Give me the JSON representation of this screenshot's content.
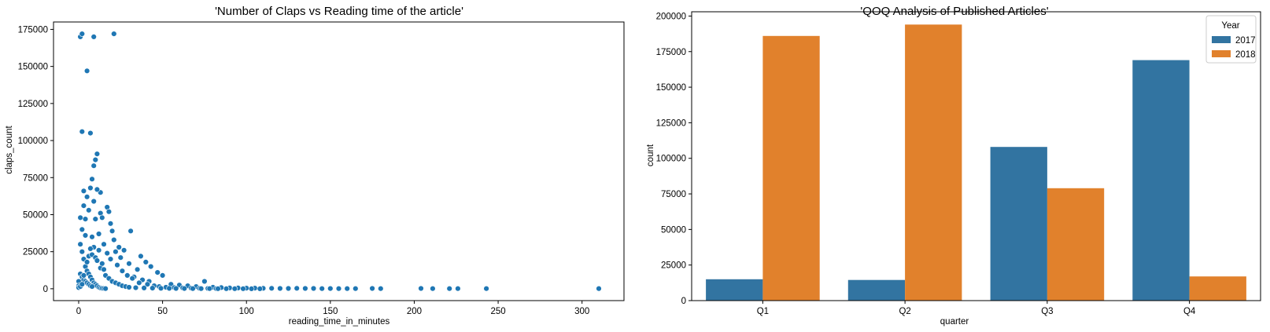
{
  "colors": {
    "blue": "#1f77b4",
    "bar_blue": "#3274a1",
    "bar_orange": "#e1812c",
    "axis": "#000000"
  },
  "chart_data": [
    {
      "type": "scatter",
      "title": "'Number of Claps vs Reading time of the article'",
      "xlabel": "reading_time_in_minutes",
      "ylabel": "claps_count",
      "xlim": [
        -15,
        325
      ],
      "ylim": [
        -8000,
        180000
      ],
      "xticks": [
        0,
        50,
        100,
        150,
        200,
        250,
        300
      ],
      "yticks": [
        0,
        25000,
        50000,
        75000,
        100000,
        125000,
        150000,
        175000
      ],
      "xtick_labels": [
        "0",
        "50",
        "100",
        "150",
        "200",
        "250",
        "300"
      ],
      "ytick_labels": [
        "0",
        "25000",
        "50000",
        "75000",
        "100000",
        "125000",
        "150000",
        "175000"
      ],
      "grid": false,
      "marker_color": "#1f77b4",
      "points": [
        [
          1,
          170000
        ],
        [
          2,
          172000
        ],
        [
          9,
          170000
        ],
        [
          21,
          172000
        ],
        [
          5,
          147000
        ],
        [
          2,
          106000
        ],
        [
          7,
          105000
        ],
        [
          11,
          91000
        ],
        [
          10,
          87000
        ],
        [
          9,
          83000
        ],
        [
          8,
          74000
        ],
        [
          3,
          66000
        ],
        [
          13,
          65000
        ],
        [
          7,
          68000
        ],
        [
          11,
          67000
        ],
        [
          5,
          62000
        ],
        [
          9,
          59000
        ],
        [
          3,
          56000
        ],
        [
          17,
          55000
        ],
        [
          18,
          52000
        ],
        [
          13,
          51000
        ],
        [
          6,
          53000
        ],
        [
          1,
          48000
        ],
        [
          4,
          47000
        ],
        [
          10,
          47000
        ],
        [
          14,
          48000
        ],
        [
          19,
          44000
        ],
        [
          20,
          39000
        ],
        [
          31,
          39000
        ],
        [
          2,
          40000
        ],
        [
          4,
          36000
        ],
        [
          8,
          35000
        ],
        [
          12,
          37000
        ],
        [
          21,
          33000
        ],
        [
          15,
          30000
        ],
        [
          24,
          28000
        ],
        [
          9,
          28000
        ],
        [
          27,
          26000
        ],
        [
          22,
          25000
        ],
        [
          37,
          22000
        ],
        [
          40,
          18000
        ],
        [
          43,
          15000
        ],
        [
          47,
          11000
        ],
        [
          30,
          17000
        ],
        [
          25,
          21000
        ],
        [
          35,
          13000
        ],
        [
          50,
          9000
        ],
        [
          33,
          8000
        ],
        [
          38,
          6000
        ],
        [
          42,
          5000
        ],
        [
          55,
          3000
        ],
        [
          60,
          2500
        ],
        [
          75,
          5000
        ],
        [
          65,
          2000
        ],
        [
          70,
          1500
        ],
        [
          80,
          1000
        ],
        [
          85,
          800
        ],
        [
          90,
          600
        ],
        [
          95,
          500
        ],
        [
          100,
          400
        ],
        [
          105,
          400
        ],
        [
          110,
          300
        ],
        [
          115,
          300
        ],
        [
          120,
          200
        ],
        [
          125,
          200
        ],
        [
          130,
          300
        ],
        [
          135,
          200
        ],
        [
          140,
          200
        ],
        [
          145,
          100
        ],
        [
          150,
          150
        ],
        [
          155,
          100
        ],
        [
          160,
          100
        ],
        [
          165,
          100
        ],
        [
          175,
          200
        ],
        [
          180,
          100
        ],
        [
          204,
          200
        ],
        [
          211,
          100
        ],
        [
          221,
          100
        ],
        [
          226,
          100
        ],
        [
          243,
          100
        ],
        [
          310,
          100
        ],
        [
          1,
          30000
        ],
        [
          2,
          25000
        ],
        [
          3,
          20000
        ],
        [
          4,
          15000
        ],
        [
          5,
          12000
        ],
        [
          6,
          10000
        ],
        [
          7,
          8000
        ],
        [
          8,
          6000
        ],
        [
          9,
          4000
        ],
        [
          10,
          3000
        ],
        [
          11,
          2000
        ],
        [
          12,
          1000
        ],
        [
          13,
          500
        ],
        [
          14,
          300
        ],
        [
          15,
          200
        ],
        [
          16,
          100
        ],
        [
          1,
          10000
        ],
        [
          2,
          8000
        ],
        [
          3,
          6000
        ],
        [
          4,
          5000
        ],
        [
          5,
          4000
        ],
        [
          6,
          3000
        ],
        [
          7,
          2000
        ],
        [
          8,
          1500
        ],
        [
          17,
          24000
        ],
        [
          19,
          20000
        ],
        [
          23,
          16000
        ],
        [
          26,
          12000
        ],
        [
          29,
          9000
        ],
        [
          32,
          7000
        ],
        [
          36,
          4000
        ],
        [
          41,
          3000
        ],
        [
          45,
          2000
        ],
        [
          48,
          1500
        ],
        [
          52,
          1000
        ],
        [
          57,
          800
        ],
        [
          62,
          600
        ],
        [
          67,
          400
        ],
        [
          72,
          300
        ],
        [
          77,
          200
        ],
        [
          82,
          100
        ],
        [
          0,
          5000
        ],
        [
          0,
          2000
        ],
        [
          0,
          800
        ],
        [
          1,
          1500
        ],
        [
          2,
          3000
        ],
        [
          3,
          9000
        ],
        [
          5,
          18000
        ],
        [
          6,
          22000
        ],
        [
          7,
          27000
        ],
        [
          8,
          23000
        ],
        [
          10,
          21000
        ],
        [
          11,
          19000
        ],
        [
          12,
          26000
        ],
        [
          13,
          14000
        ],
        [
          14,
          17000
        ],
        [
          15,
          13000
        ],
        [
          16,
          9000
        ],
        [
          18,
          7000
        ],
        [
          20,
          5000
        ],
        [
          22,
          4000
        ],
        [
          24,
          3000
        ],
        [
          26,
          2000
        ],
        [
          28,
          1500
        ],
        [
          30,
          1000
        ],
        [
          34,
          700
        ],
        [
          39,
          500
        ],
        [
          44,
          400
        ],
        [
          49,
          300
        ],
        [
          54,
          250
        ],
        [
          58,
          200
        ],
        [
          63,
          150
        ],
        [
          68,
          120
        ],
        [
          73,
          100
        ],
        [
          78,
          80
        ],
        [
          83,
          60
        ],
        [
          88,
          50
        ],
        [
          93,
          40
        ],
        [
          98,
          30
        ],
        [
          103,
          20
        ],
        [
          108,
          20
        ]
      ]
    },
    {
      "type": "bar",
      "title": "'QOQ Analysis of Published Articles'",
      "xlabel": "quarter",
      "ylabel": "count",
      "categories": [
        "Q1",
        "Q2",
        "Q3",
        "Q4"
      ],
      "ylim": [
        0,
        203000
      ],
      "yticks": [
        0,
        25000,
        50000,
        75000,
        100000,
        125000,
        150000,
        175000,
        200000
      ],
      "ytick_labels": [
        "0",
        "25000",
        "50000",
        "75000",
        "100000",
        "125000",
        "150000",
        "175000",
        "200000"
      ],
      "grid": false,
      "legend": {
        "title": "Year",
        "placement": "top-right"
      },
      "series": [
        {
          "name": "2017",
          "color": "#3274a1",
          "values": [
            15000,
            14500,
            108000,
            169000
          ]
        },
        {
          "name": "2018",
          "color": "#e1812c",
          "values": [
            186000,
            194000,
            79000,
            17000
          ]
        }
      ]
    }
  ]
}
